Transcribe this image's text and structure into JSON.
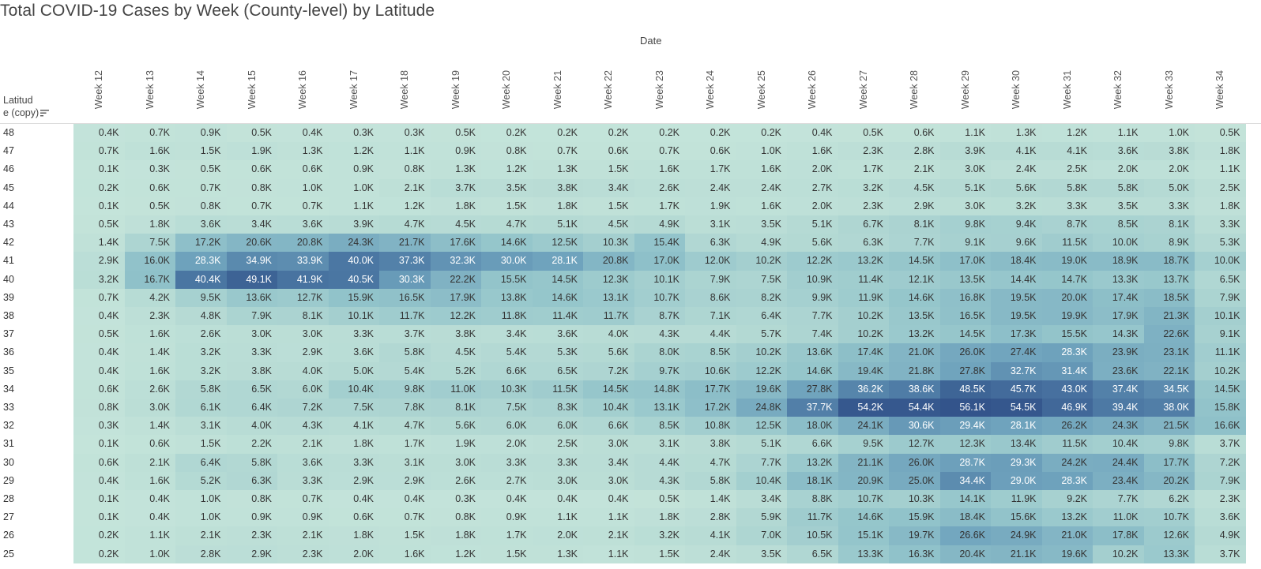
{
  "title": "Total COVID-19 Cases by Week (County-level) by Latitude",
  "column_group_label": "Date",
  "row_header": {
    "line1": "Latitud",
    "line2": "e (copy)"
  },
  "colors": {
    "low": "#c4e4da",
    "mid": "#8fc2ca",
    "high": "#33548b",
    "text_dark": "#333333",
    "text_light": "#ffffff"
  },
  "chart_data": {
    "type": "heatmap",
    "title": "Total COVID-19 Cases by Week (County-level) by Latitude",
    "xlabel": "Date",
    "ylabel": "Latitude (copy)",
    "columns": [
      "Week 12",
      "Week 13",
      "Week 14",
      "Week 15",
      "Week 16",
      "Week 17",
      "Week 18",
      "Week 19",
      "Week 20",
      "Week 21",
      "Week 22",
      "Week 23",
      "Week 24",
      "Week 25",
      "Week 26",
      "Week 27",
      "Week 28",
      "Week 29",
      "Week 30",
      "Week 31",
      "Week 32",
      "Week 33",
      "Week 34"
    ],
    "rows": [
      {
        "lat": "48",
        "values": [
          "0.4K",
          "0.7K",
          "0.9K",
          "0.5K",
          "0.4K",
          "0.3K",
          "0.3K",
          "0.5K",
          "0.2K",
          "0.2K",
          "0.2K",
          "0.2K",
          "0.2K",
          "0.2K",
          "0.4K",
          "0.5K",
          "0.6K",
          "1.1K",
          "1.3K",
          "1.2K",
          "1.1K",
          "1.0K",
          "0.5K"
        ]
      },
      {
        "lat": "47",
        "values": [
          "0.7K",
          "1.6K",
          "1.5K",
          "1.9K",
          "1.3K",
          "1.2K",
          "1.1K",
          "0.9K",
          "0.8K",
          "0.7K",
          "0.6K",
          "0.7K",
          "0.6K",
          "1.0K",
          "1.6K",
          "2.3K",
          "2.8K",
          "3.9K",
          "4.1K",
          "4.1K",
          "3.6K",
          "3.8K",
          "1.8K"
        ]
      },
      {
        "lat": "46",
        "values": [
          "0.1K",
          "0.3K",
          "0.5K",
          "0.6K",
          "0.6K",
          "0.9K",
          "0.8K",
          "1.3K",
          "1.2K",
          "1.3K",
          "1.5K",
          "1.6K",
          "1.7K",
          "1.6K",
          "2.0K",
          "1.7K",
          "2.1K",
          "3.0K",
          "2.4K",
          "2.5K",
          "2.0K",
          "2.0K",
          "1.1K"
        ]
      },
      {
        "lat": "45",
        "values": [
          "0.2K",
          "0.6K",
          "0.7K",
          "0.8K",
          "1.0K",
          "1.0K",
          "2.1K",
          "3.7K",
          "3.5K",
          "3.8K",
          "3.4K",
          "2.6K",
          "2.4K",
          "2.4K",
          "2.7K",
          "3.2K",
          "4.5K",
          "5.1K",
          "5.6K",
          "5.8K",
          "5.8K",
          "5.0K",
          "2.5K"
        ]
      },
      {
        "lat": "44",
        "values": [
          "0.1K",
          "0.5K",
          "0.8K",
          "0.7K",
          "0.7K",
          "1.1K",
          "1.2K",
          "1.8K",
          "1.5K",
          "1.8K",
          "1.5K",
          "1.7K",
          "1.9K",
          "1.6K",
          "2.0K",
          "2.3K",
          "2.9K",
          "3.0K",
          "3.2K",
          "3.3K",
          "3.5K",
          "3.3K",
          "1.8K"
        ]
      },
      {
        "lat": "43",
        "values": [
          "0.5K",
          "1.8K",
          "3.6K",
          "3.4K",
          "3.6K",
          "3.9K",
          "4.7K",
          "4.5K",
          "4.7K",
          "5.1K",
          "4.5K",
          "4.9K",
          "3.1K",
          "3.5K",
          "5.1K",
          "6.7K",
          "8.1K",
          "9.8K",
          "9.4K",
          "8.7K",
          "8.5K",
          "8.1K",
          "3.3K"
        ]
      },
      {
        "lat": "42",
        "values": [
          "1.4K",
          "7.5K",
          "17.2K",
          "20.6K",
          "20.8K",
          "24.3K",
          "21.7K",
          "17.6K",
          "14.6K",
          "12.5K",
          "10.3K",
          "15.4K",
          "6.3K",
          "4.9K",
          "5.6K",
          "6.3K",
          "7.7K",
          "9.1K",
          "9.6K",
          "11.5K",
          "10.0K",
          "8.9K",
          "5.3K"
        ]
      },
      {
        "lat": "41",
        "values": [
          "2.9K",
          "16.0K",
          "28.3K",
          "34.9K",
          "33.9K",
          "40.0K",
          "37.3K",
          "32.3K",
          "30.0K",
          "28.1K",
          "20.8K",
          "17.0K",
          "12.0K",
          "10.2K",
          "12.2K",
          "13.2K",
          "14.5K",
          "17.0K",
          "18.4K",
          "19.0K",
          "18.9K",
          "18.7K",
          "10.0K"
        ]
      },
      {
        "lat": "40",
        "values": [
          "3.2K",
          "16.7K",
          "40.4K",
          "49.1K",
          "41.9K",
          "40.5K",
          "30.3K",
          "22.2K",
          "15.5K",
          "14.5K",
          "12.3K",
          "10.1K",
          "7.9K",
          "7.5K",
          "10.9K",
          "11.4K",
          "12.1K",
          "13.5K",
          "14.4K",
          "14.7K",
          "13.3K",
          "13.7K",
          "6.5K"
        ]
      },
      {
        "lat": "39",
        "values": [
          "0.7K",
          "4.2K",
          "9.5K",
          "13.6K",
          "12.7K",
          "15.9K",
          "16.5K",
          "17.9K",
          "13.8K",
          "14.6K",
          "13.1K",
          "10.7K",
          "8.6K",
          "8.2K",
          "9.9K",
          "11.9K",
          "14.6K",
          "16.8K",
          "19.5K",
          "20.0K",
          "17.4K",
          "18.5K",
          "7.9K"
        ]
      },
      {
        "lat": "38",
        "values": [
          "0.4K",
          "2.3K",
          "4.8K",
          "7.9K",
          "8.1K",
          "10.1K",
          "11.7K",
          "12.2K",
          "11.8K",
          "11.4K",
          "11.7K",
          "8.7K",
          "7.1K",
          "6.4K",
          "7.7K",
          "10.2K",
          "13.5K",
          "16.5K",
          "19.5K",
          "19.9K",
          "17.9K",
          "21.3K",
          "10.1K"
        ]
      },
      {
        "lat": "37",
        "values": [
          "0.5K",
          "1.6K",
          "2.6K",
          "3.0K",
          "3.0K",
          "3.3K",
          "3.7K",
          "3.8K",
          "3.4K",
          "3.6K",
          "4.0K",
          "4.3K",
          "4.4K",
          "5.7K",
          "7.4K",
          "10.2K",
          "13.2K",
          "14.5K",
          "17.3K",
          "15.5K",
          "14.3K",
          "22.6K",
          "9.1K"
        ]
      },
      {
        "lat": "36",
        "values": [
          "0.4K",
          "1.4K",
          "3.2K",
          "3.3K",
          "2.9K",
          "3.6K",
          "5.8K",
          "4.5K",
          "5.4K",
          "5.3K",
          "5.6K",
          "8.0K",
          "8.5K",
          "10.2K",
          "13.6K",
          "17.4K",
          "21.0K",
          "26.0K",
          "27.4K",
          "28.3K",
          "23.9K",
          "23.1K",
          "11.1K"
        ]
      },
      {
        "lat": "35",
        "values": [
          "0.4K",
          "1.6K",
          "3.2K",
          "3.8K",
          "4.0K",
          "5.0K",
          "5.4K",
          "5.2K",
          "6.6K",
          "6.5K",
          "7.2K",
          "9.7K",
          "10.6K",
          "12.2K",
          "14.6K",
          "19.4K",
          "21.8K",
          "27.8K",
          "32.7K",
          "31.4K",
          "23.6K",
          "22.1K",
          "10.2K"
        ]
      },
      {
        "lat": "34",
        "values": [
          "0.6K",
          "2.6K",
          "5.8K",
          "6.5K",
          "6.0K",
          "10.4K",
          "9.8K",
          "11.0K",
          "10.3K",
          "11.5K",
          "14.5K",
          "14.8K",
          "17.7K",
          "19.6K",
          "27.8K",
          "36.2K",
          "38.6K",
          "48.5K",
          "45.7K",
          "43.0K",
          "37.4K",
          "34.5K",
          "14.5K"
        ]
      },
      {
        "lat": "33",
        "values": [
          "0.8K",
          "3.0K",
          "6.1K",
          "6.4K",
          "7.2K",
          "7.5K",
          "7.8K",
          "8.1K",
          "7.5K",
          "8.3K",
          "10.4K",
          "13.1K",
          "17.2K",
          "24.8K",
          "37.7K",
          "54.2K",
          "54.4K",
          "56.1K",
          "54.5K",
          "46.9K",
          "39.4K",
          "38.0K",
          "15.8K"
        ]
      },
      {
        "lat": "32",
        "values": [
          "0.3K",
          "1.4K",
          "3.1K",
          "4.0K",
          "4.3K",
          "4.1K",
          "4.7K",
          "5.6K",
          "6.0K",
          "6.0K",
          "6.6K",
          "8.5K",
          "10.8K",
          "12.5K",
          "18.0K",
          "24.1K",
          "30.6K",
          "29.4K",
          "28.1K",
          "26.2K",
          "24.3K",
          "21.5K",
          "16.6K"
        ]
      },
      {
        "lat": "31",
        "values": [
          "0.1K",
          "0.6K",
          "1.5K",
          "2.2K",
          "2.1K",
          "1.8K",
          "1.7K",
          "1.9K",
          "2.0K",
          "2.5K",
          "3.0K",
          "3.1K",
          "3.8K",
          "5.1K",
          "6.6K",
          "9.5K",
          "12.7K",
          "12.3K",
          "13.4K",
          "11.5K",
          "10.4K",
          "9.8K",
          "3.7K"
        ]
      },
      {
        "lat": "30",
        "values": [
          "0.6K",
          "2.1K",
          "6.4K",
          "5.8K",
          "3.6K",
          "3.3K",
          "3.1K",
          "3.0K",
          "3.3K",
          "3.3K",
          "3.4K",
          "4.4K",
          "4.7K",
          "7.7K",
          "13.2K",
          "21.1K",
          "26.0K",
          "28.7K",
          "29.3K",
          "24.2K",
          "24.4K",
          "17.7K",
          "7.2K"
        ]
      },
      {
        "lat": "29",
        "values": [
          "0.4K",
          "1.6K",
          "5.2K",
          "6.3K",
          "3.3K",
          "2.9K",
          "2.9K",
          "2.6K",
          "2.7K",
          "3.0K",
          "3.0K",
          "4.3K",
          "5.8K",
          "10.4K",
          "18.1K",
          "20.9K",
          "25.0K",
          "34.4K",
          "29.0K",
          "28.3K",
          "23.4K",
          "20.2K",
          "7.9K"
        ]
      },
      {
        "lat": "28",
        "values": [
          "0.1K",
          "0.4K",
          "1.0K",
          "0.8K",
          "0.7K",
          "0.4K",
          "0.4K",
          "0.3K",
          "0.4K",
          "0.4K",
          "0.4K",
          "0.5K",
          "1.4K",
          "3.4K",
          "8.8K",
          "10.7K",
          "10.3K",
          "14.1K",
          "11.9K",
          "9.2K",
          "7.7K",
          "6.2K",
          "2.3K"
        ]
      },
      {
        "lat": "27",
        "values": [
          "0.1K",
          "0.4K",
          "1.0K",
          "0.9K",
          "0.9K",
          "0.6K",
          "0.7K",
          "0.8K",
          "0.9K",
          "1.1K",
          "1.1K",
          "1.8K",
          "2.8K",
          "5.9K",
          "11.7K",
          "14.6K",
          "15.9K",
          "18.4K",
          "15.6K",
          "13.2K",
          "11.0K",
          "10.7K",
          "3.6K"
        ]
      },
      {
        "lat": "26",
        "values": [
          "0.2K",
          "1.1K",
          "2.1K",
          "2.3K",
          "2.1K",
          "1.8K",
          "1.5K",
          "1.8K",
          "1.7K",
          "2.0K",
          "2.1K",
          "3.2K",
          "4.1K",
          "7.0K",
          "10.5K",
          "15.1K",
          "19.7K",
          "26.6K",
          "24.9K",
          "21.0K",
          "17.8K",
          "12.6K",
          "4.9K"
        ]
      },
      {
        "lat": "25",
        "values": [
          "0.2K",
          "1.0K",
          "2.8K",
          "2.9K",
          "2.3K",
          "2.0K",
          "1.6K",
          "1.2K",
          "1.5K",
          "1.3K",
          "1.1K",
          "1.5K",
          "2.4K",
          "3.5K",
          "6.5K",
          "13.3K",
          "16.3K",
          "20.4K",
          "21.1K",
          "19.6K",
          "10.2K",
          "13.3K",
          "3.7K"
        ]
      }
    ],
    "unit": "thousands of cases",
    "color_range": [
      0,
      56.1
    ],
    "sorted_by": "latitude descending"
  }
}
